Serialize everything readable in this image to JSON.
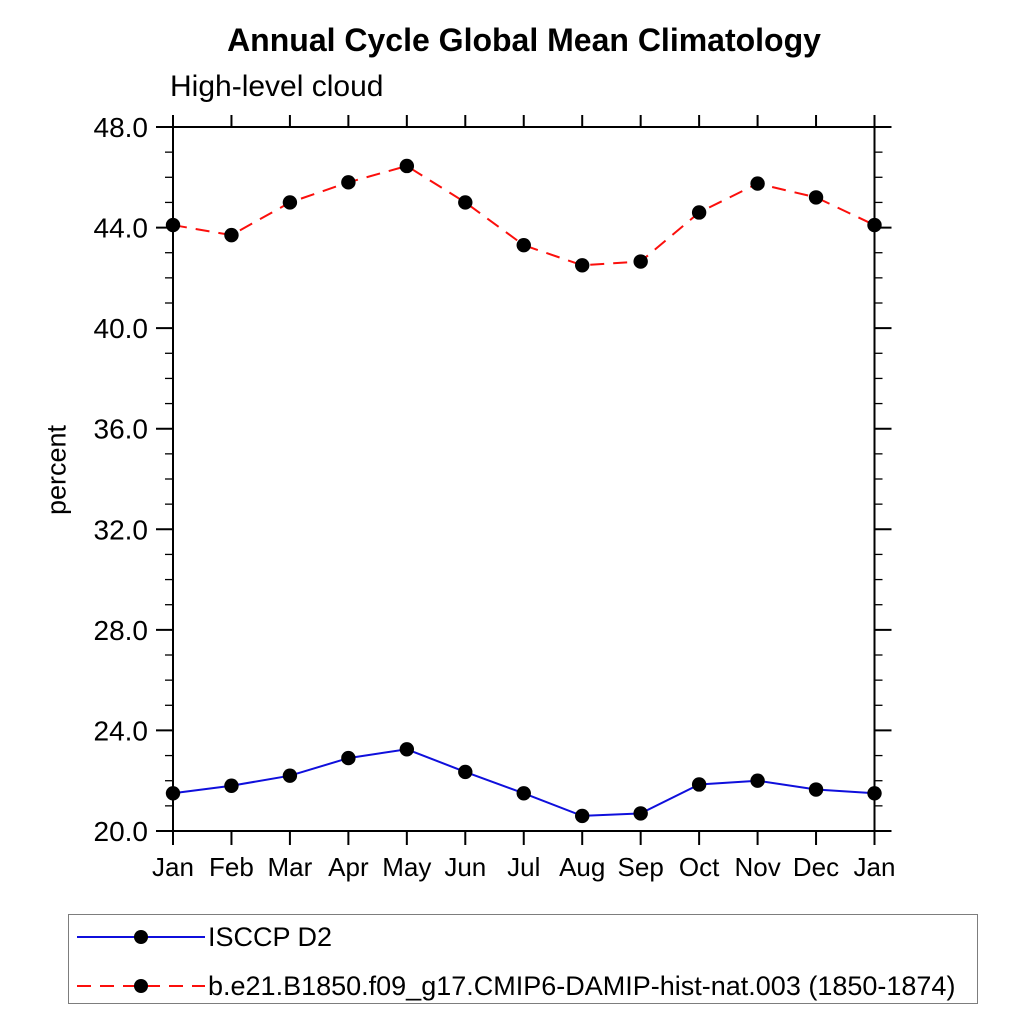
{
  "header": {
    "title": "Annual Cycle Global Mean Climatology",
    "subtitle": "High-level cloud"
  },
  "chart_data": {
    "type": "line",
    "title": "Annual Cycle Global Mean Climatology",
    "subtitle": "High-level cloud",
    "xlabel": "",
    "ylabel": "percent",
    "ylim": [
      20.0,
      48.0
    ],
    "ytick_values": [
      20.0,
      24.0,
      28.0,
      32.0,
      36.0,
      40.0,
      44.0,
      48.0
    ],
    "ytick_labels": [
      "20.0",
      "24.0",
      "28.0",
      "32.0",
      "36.0",
      "40.0",
      "44.0",
      "48.0"
    ],
    "yminor_step": 1.0,
    "grid": false,
    "legend_position": "bottom-left-box",
    "categories": [
      "Jan",
      "Feb",
      "Mar",
      "Apr",
      "May",
      "Jun",
      "Jul",
      "Aug",
      "Sep",
      "Oct",
      "Nov",
      "Dec",
      "Jan"
    ],
    "series": [
      {
        "name": "ISCCP D2",
        "color": "#0f0fdc",
        "line_style": "solid",
        "marker": "circle",
        "marker_color": "#000000",
        "values": [
          21.5,
          21.8,
          22.2,
          22.9,
          23.25,
          22.35,
          21.5,
          20.6,
          20.7,
          21.85,
          22.0,
          21.65,
          21.5
        ]
      },
      {
        "name": "b.e21.B1850.f09_g17.CMIP6-DAMIP-hist-nat.003 (1850-1874)",
        "color": "#fb0f0c",
        "line_style": "dashed",
        "marker": "circle",
        "marker_color": "#000000",
        "values": [
          44.1,
          43.7,
          45.0,
          45.8,
          46.45,
          45.0,
          43.3,
          42.5,
          42.65,
          44.6,
          45.75,
          45.2,
          44.1
        ]
      }
    ],
    "axis_color": "#000000",
    "tick_label_color": "#000000"
  }
}
